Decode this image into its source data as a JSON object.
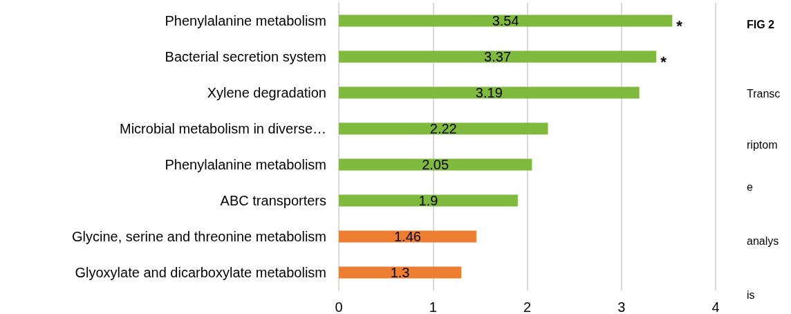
{
  "chart_data": {
    "type": "bar",
    "orientation": "horizontal",
    "categories": [
      "Phenylalanine metabolism",
      "Bacterial secretion system",
      "Xylene degradation",
      "Microbial metabolism in diverse…",
      "Phenylalanine metabolism",
      "ABC transporters",
      "Glycine, serine and threonine metabolism",
      "Glyoxylate and dicarboxylate metabolism"
    ],
    "values": [
      3.54,
      3.37,
      3.19,
      2.22,
      2.05,
      1.9,
      1.46,
      1.3
    ],
    "colors": [
      "#7fba3f",
      "#7fba3f",
      "#7fba3f",
      "#7fba3f",
      "#7fba3f",
      "#7fba3f",
      "#ed7d31",
      "#ed7d31"
    ],
    "xlim": [
      0,
      4
    ],
    "xticks": [
      0,
      1,
      2,
      3,
      4
    ],
    "grid": "x",
    "data_labels": true,
    "annotations": [
      {
        "text": "*",
        "x": 3.54,
        "y": "Phenylalanine metabolism"
      },
      {
        "text": "*",
        "x": 3.37,
        "y": "Bacterial secretion system"
      },
      "FIG 2",
      "Transc",
      "riptom",
      "e",
      "analys",
      "is"
    ]
  }
}
